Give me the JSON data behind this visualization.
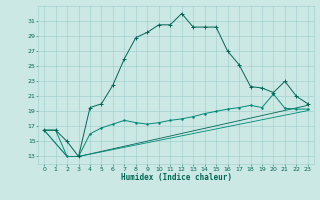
{
  "xlabel": "Humidex (Indice chaleur)",
  "background_color": "#cce8e4",
  "grid_color": "#99cccc",
  "line_color1": "#006655",
  "line_color2": "#008877",
  "xlim": [
    -0.5,
    23.5
  ],
  "ylim": [
    12,
    33
  ],
  "yticks": [
    13,
    15,
    17,
    19,
    21,
    23,
    25,
    27,
    29,
    31
  ],
  "xticks": [
    0,
    1,
    2,
    3,
    4,
    5,
    6,
    7,
    8,
    9,
    10,
    11,
    12,
    13,
    14,
    15,
    16,
    17,
    18,
    19,
    20,
    21,
    22,
    23
  ],
  "series1_x": [
    0,
    1,
    2,
    3,
    4,
    5,
    6,
    7,
    8,
    9,
    10,
    11,
    12,
    13,
    14,
    15,
    16,
    17,
    18,
    19,
    20,
    21,
    22,
    23
  ],
  "series1_y": [
    16.5,
    16.5,
    15.0,
    13.0,
    19.5,
    20.0,
    22.5,
    26.0,
    28.8,
    29.5,
    30.5,
    30.5,
    32.0,
    30.2,
    30.2,
    30.2,
    27.0,
    25.2,
    22.3,
    22.1,
    21.5,
    23.0,
    21.0,
    20.0
  ],
  "series2_x": [
    0,
    1,
    2,
    3,
    4,
    5,
    6,
    7,
    8,
    9,
    10,
    11,
    12,
    13,
    14,
    15,
    16,
    17,
    18,
    19,
    20,
    21,
    22,
    23
  ],
  "series2_y": [
    16.5,
    16.5,
    13.0,
    13.0,
    16.0,
    16.8,
    17.3,
    17.8,
    17.5,
    17.3,
    17.5,
    17.8,
    18.0,
    18.3,
    18.7,
    19.0,
    19.3,
    19.5,
    19.8,
    19.5,
    21.3,
    19.4,
    19.3,
    19.3
  ],
  "series3_x": [
    0,
    2,
    3,
    23
  ],
  "series3_y": [
    16.5,
    13.0,
    13.0,
    19.8
  ],
  "series4_x": [
    0,
    2,
    3,
    23
  ],
  "series4_y": [
    16.5,
    13.0,
    13.0,
    19.1
  ]
}
